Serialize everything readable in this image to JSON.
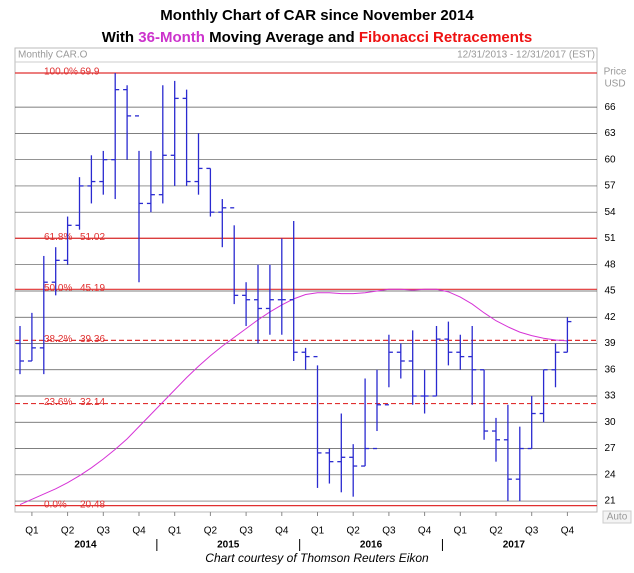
{
  "chart_data": {
    "type": "ohlc",
    "title": "Monthly Chart of CAR since November 2014",
    "subtitle_parts": [
      "With ",
      "36-Month",
      " Moving Average and ",
      "Fibonacci Retracements"
    ],
    "subtitle_colors": [
      "#000000",
      "#cc33cc",
      "#000000",
      "#ee1111"
    ],
    "instrument_label": "Monthly CAR.O",
    "date_range": "12/31/2013 - 12/31/2017 (EST)",
    "axis_label_lines": [
      "Price",
      "USD"
    ],
    "auto_label": "Auto",
    "footer": "Chart courtesy of Thomson Reuters Eikon",
    "ylim": [
      19.75,
      70.7
    ],
    "yticks": [
      21,
      24,
      27,
      30,
      33,
      36,
      39,
      42,
      45,
      48,
      51,
      54,
      57,
      60,
      63,
      66
    ],
    "grid": true,
    "quarter_labels": [
      "Q1",
      "Q2",
      "Q3",
      "Q4",
      "Q1",
      "Q2",
      "Q3",
      "Q4",
      "Q1",
      "Q2",
      "Q3",
      "Q4",
      "Q1",
      "Q2",
      "Q3",
      "Q4"
    ],
    "years": [
      "2014",
      "2015",
      "2016",
      "2017"
    ],
    "bar_color": "#2a2ad0",
    "ohlc": {
      "open": [
        39,
        37,
        38.5,
        46,
        48.5,
        52.5,
        57,
        57.5,
        60,
        68,
        65,
        55,
        56,
        60.5,
        67,
        57.5,
        59,
        54,
        54.5,
        44.5,
        44,
        43,
        44,
        44,
        38,
        37.5,
        26.5,
        25.5,
        26,
        25,
        27,
        32,
        38,
        37,
        33,
        33,
        39.5,
        38,
        37.5,
        36,
        29,
        28,
        23.5,
        27,
        31,
        36,
        38
      ],
      "high": [
        41,
        42.5,
        49,
        50,
        53.5,
        58,
        60.5,
        61,
        69.9,
        68.5,
        61,
        61,
        68.5,
        69,
        68,
        63,
        59,
        55.5,
        52.5,
        46,
        48,
        48,
        51,
        53,
        38.5,
        36.5,
        27,
        31,
        27.5,
        35,
        36,
        40,
        39,
        40.5,
        36,
        41,
        41.5,
        40,
        41,
        36,
        30.5,
        32,
        29.5,
        33,
        36,
        39,
        42
      ],
      "low": [
        35.5,
        37,
        35.5,
        44.5,
        48,
        52,
        55,
        56,
        55.5,
        60,
        46,
        54,
        55,
        57,
        57,
        56,
        53.5,
        50,
        43.5,
        41,
        39,
        40,
        40,
        37,
        36,
        22.5,
        23,
        22,
        21.5,
        25,
        29,
        34,
        35,
        32,
        31,
        33,
        36.5,
        36,
        32,
        28,
        25.5,
        21,
        21,
        27,
        30,
        34,
        38
      ],
      "close": [
        37,
        38.5,
        46,
        48.5,
        52.5,
        57,
        57.5,
        60,
        68,
        65,
        55,
        56,
        60.5,
        67,
        57.5,
        59,
        54,
        54.5,
        44.5,
        44,
        43,
        44,
        44,
        38,
        37.5,
        26.5,
        25.5,
        26,
        25,
        27,
        32,
        38,
        37,
        33,
        33,
        39.5,
        38,
        37.5,
        36,
        29,
        28,
        23.5,
        27,
        31,
        36,
        38,
        41.5
      ]
    },
    "moving_average": {
      "color": "#d633d6",
      "values": [
        20.6,
        21.2,
        21.8,
        22.4,
        23.1,
        23.9,
        24.8,
        25.8,
        26.9,
        28.1,
        29.5,
        30.9,
        32.3,
        33.7,
        35.1,
        36.4,
        37.6,
        38.7,
        39.7,
        40.7,
        41.7,
        42.6,
        43.4,
        44.1,
        44.6,
        44.8,
        44.8,
        44.7,
        44.7,
        44.8,
        45.0,
        45.2,
        45.2,
        45.1,
        45.2,
        45.2,
        44.9,
        44.3,
        43.5,
        42.5,
        41.6,
        40.9,
        40.3,
        39.9,
        39.6,
        39.4,
        39.3
      ]
    },
    "fib_color": "#e03030",
    "fibonacci": [
      {
        "pct": "100.0%",
        "value": 69.9,
        "style": "solid"
      },
      {
        "pct": "61.8%",
        "value": 51.02,
        "style": "solid"
      },
      {
        "pct": "50.0%",
        "value": 45.19,
        "style": "solid"
      },
      {
        "pct": "38.2%",
        "value": 39.36,
        "style": "dashed"
      },
      {
        "pct": "23.6%",
        "value": 32.14,
        "style": "dashed"
      },
      {
        "pct": "0.0%",
        "value": 20.48,
        "style": "solid"
      }
    ]
  }
}
